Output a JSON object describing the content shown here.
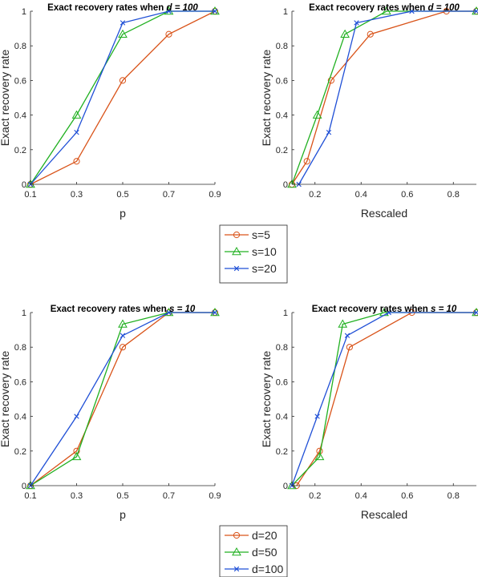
{
  "chart_data": [
    {
      "type": "line",
      "title_prefix": "Exact recovery rates when ",
      "title_param": "d = 100",
      "xlabel": "p",
      "ylabel": "Exact recovery rate",
      "xlim": [
        0.1,
        0.9
      ],
      "ylim": [
        0,
        1
      ],
      "xticks": [
        "0.1",
        "0.3",
        "0.5",
        "0.7",
        "0.9"
      ],
      "yticks": [
        "0",
        "0.2",
        "0.4",
        "0.6",
        "0.8",
        "1"
      ],
      "grid": false,
      "series": [
        {
          "name": "s=5",
          "color": "#D95319",
          "marker": "circle",
          "x": [
            0.1,
            0.3,
            0.5,
            0.7,
            0.9
          ],
          "y": [
            0,
            0.133,
            0.6,
            0.867,
            1.0
          ]
        },
        {
          "name": "s=10",
          "color": "#20B020",
          "marker": "triangle",
          "x": [
            0.1,
            0.3,
            0.5,
            0.7,
            0.9
          ],
          "y": [
            0,
            0.4,
            0.867,
            1.0,
            1.0
          ]
        },
        {
          "name": "s=20",
          "color": "#1F4FD6",
          "marker": "x",
          "x": [
            0.1,
            0.3,
            0.5,
            0.7,
            0.9
          ],
          "y": [
            0,
            0.3,
            0.933,
            1.0,
            1.0
          ]
        }
      ]
    },
    {
      "type": "line",
      "title_prefix": "Exact recovery rates when ",
      "title_param": "d = 100",
      "xlabel": "Rescaled",
      "ylabel": "Exact recovery rate",
      "xlim": [
        0.1,
        0.9
      ],
      "ylim": [
        0,
        1
      ],
      "xticks": [
        "0.2",
        "0.4",
        "0.6",
        "0.8"
      ],
      "yticks": [
        "0",
        "0.2",
        "0.4",
        "0.6",
        "0.8",
        "1"
      ],
      "grid": false,
      "series": [
        {
          "name": "s=5",
          "color": "#D95319",
          "marker": "circle",
          "x": [
            0.1,
            0.165,
            0.27,
            0.44,
            0.77,
            0.9
          ],
          "y": [
            0,
            0.133,
            0.6,
            0.867,
            1.0,
            1.0
          ]
        },
        {
          "name": "s=10",
          "color": "#20B020",
          "marker": "triangle",
          "x": [
            0.1,
            0.21,
            0.33,
            0.51,
            0.9
          ],
          "y": [
            0,
            0.4,
            0.867,
            1.0,
            1.0
          ]
        },
        {
          "name": "s=20",
          "color": "#1F4FD6",
          "marker": "x",
          "x": [
            0.13,
            0.26,
            0.38,
            0.62,
            0.9
          ],
          "y": [
            0,
            0.3,
            0.933,
            1.0,
            1.0
          ]
        }
      ]
    },
    {
      "type": "line",
      "title_prefix": "Exact recovery rates when ",
      "title_param": "s = 10",
      "xlabel": "p",
      "ylabel": "Exact recovery rate",
      "xlim": [
        0.1,
        0.9
      ],
      "ylim": [
        0,
        1
      ],
      "xticks": [
        "0.1",
        "0.3",
        "0.5",
        "0.7",
        "0.9"
      ],
      "yticks": [
        "0",
        "0.2",
        "0.4",
        "0.6",
        "0.8",
        "1"
      ],
      "grid": false,
      "series": [
        {
          "name": "d=20",
          "color": "#D95319",
          "marker": "circle",
          "x": [
            0.1,
            0.3,
            0.5,
            0.7,
            0.9
          ],
          "y": [
            0,
            0.2,
            0.8,
            1.0,
            1.0
          ]
        },
        {
          "name": "d=50",
          "color": "#20B020",
          "marker": "triangle",
          "x": [
            0.1,
            0.3,
            0.5,
            0.7,
            0.9
          ],
          "y": [
            0,
            0.167,
            0.933,
            1.0,
            1.0
          ]
        },
        {
          "name": "d=100",
          "color": "#1F4FD6",
          "marker": "x",
          "x": [
            0.1,
            0.3,
            0.5,
            0.7,
            0.9
          ],
          "y": [
            0,
            0.4,
            0.867,
            1.0,
            1.0
          ]
        }
      ]
    },
    {
      "type": "line",
      "title_prefix": "Exact recovery rates when ",
      "title_param": "s = 10",
      "xlabel": "Rescaled",
      "ylabel": "Exact recovery rate",
      "xlim": [
        0.1,
        0.9
      ],
      "ylim": [
        0,
        1
      ],
      "xticks": [
        "0.2",
        "0.4",
        "0.6",
        "0.8"
      ],
      "yticks": [
        "0",
        "0.2",
        "0.4",
        "0.6",
        "0.8",
        "1"
      ],
      "grid": false,
      "series": [
        {
          "name": "d=20",
          "color": "#D95319",
          "marker": "circle",
          "x": [
            0.12,
            0.22,
            0.35,
            0.62,
            0.9
          ],
          "y": [
            0,
            0.2,
            0.8,
            1.0,
            1.0
          ]
        },
        {
          "name": "d=50",
          "color": "#20B020",
          "marker": "triangle",
          "x": [
            0.1,
            0.22,
            0.32,
            0.5,
            0.9
          ],
          "y": [
            0,
            0.167,
            0.933,
            1.0,
            1.0
          ]
        },
        {
          "name": "d=100",
          "color": "#1F4FD6",
          "marker": "x",
          "x": [
            0.1,
            0.21,
            0.34,
            0.52,
            0.9
          ],
          "y": [
            0,
            0.4,
            0.867,
            1.0,
            1.0
          ]
        }
      ]
    }
  ],
  "legends": [
    {
      "entries": [
        {
          "label": "s=5",
          "color": "#D95319",
          "marker": "circle"
        },
        {
          "label": "s=10",
          "color": "#20B020",
          "marker": "triangle"
        },
        {
          "label": "s=20",
          "color": "#1F4FD6",
          "marker": "x"
        }
      ]
    },
    {
      "entries": [
        {
          "label": "d=20",
          "color": "#D95319",
          "marker": "circle"
        },
        {
          "label": "d=50",
          "color": "#20B020",
          "marker": "triangle"
        },
        {
          "label": "d=100",
          "color": "#1F4FD6",
          "marker": "x"
        }
      ]
    }
  ]
}
